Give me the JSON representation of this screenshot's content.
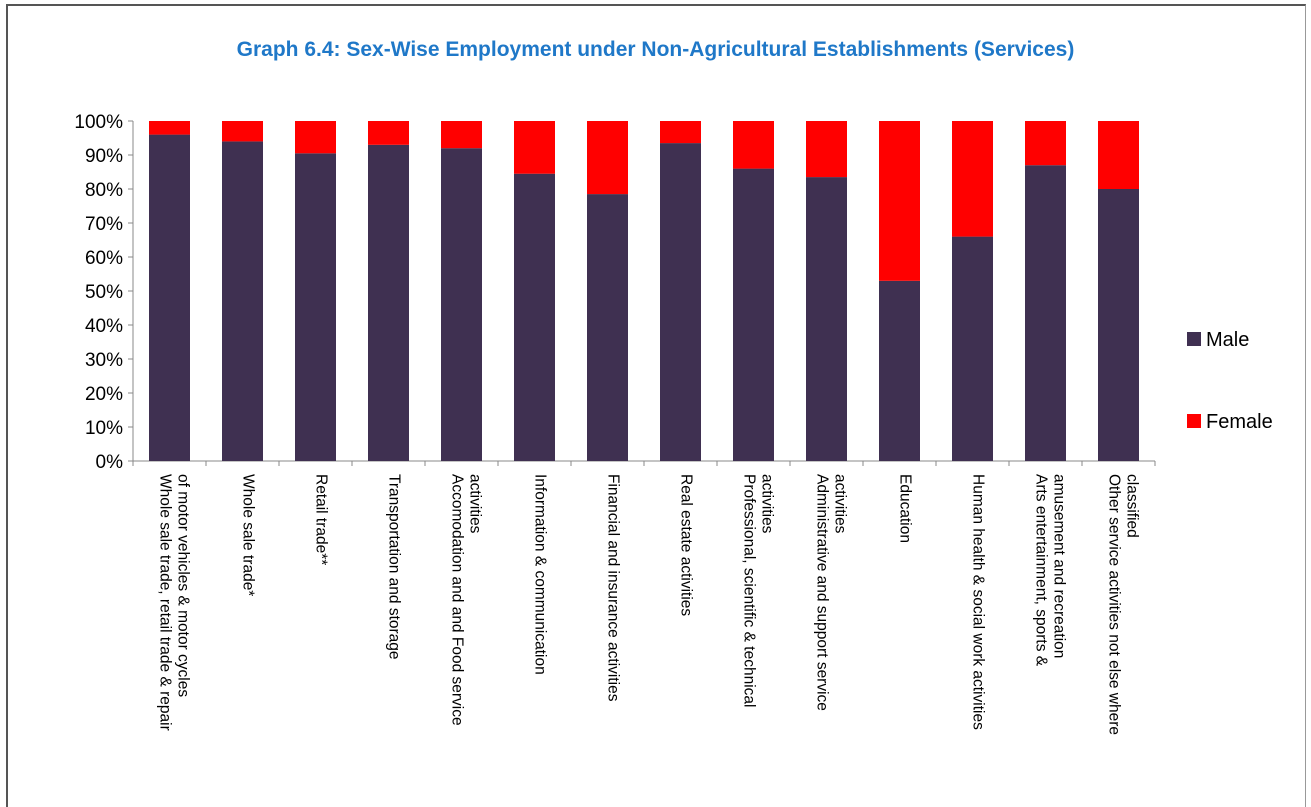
{
  "chart_data": {
    "type": "bar",
    "stacked": true,
    "percent_stacked": true,
    "title": "Graph 6.4: Sex-Wise Employment under Non-Agricultural Establishments (Services)",
    "categories": [
      [
        "Whole sale trade, retail trade & repair",
        "of motor vehicles & motor cycles"
      ],
      [
        "Whole sale trade*"
      ],
      [
        "Retail trade**"
      ],
      [
        "Transportation and storage"
      ],
      [
        "Accomodation and and Food service",
        "activities"
      ],
      [
        "Information & communication"
      ],
      [
        "Financial and insurance activities"
      ],
      [
        "Real estate activities"
      ],
      [
        "Professional, scientific & technical",
        "activities"
      ],
      [
        "Administrative and support service",
        "activities"
      ],
      [
        "Education"
      ],
      [
        "Human health & social work activities"
      ],
      [
        "Arts entertainment, sports &",
        "amusement and recreation"
      ],
      [
        "Other service activities not else where",
        "classified"
      ]
    ],
    "series": [
      {
        "name": "Male",
        "color": "#3f3051",
        "values": [
          96,
          94,
          90.5,
          93,
          92,
          84.5,
          78.5,
          93.5,
          86,
          83.5,
          53,
          66,
          87,
          80
        ]
      },
      {
        "name": "Female",
        "color": "#ff0000",
        "values": [
          4,
          6,
          9.5,
          7,
          8,
          15.5,
          21.5,
          6.5,
          14,
          16.5,
          47,
          34,
          13,
          20
        ]
      }
    ],
    "ylim": [
      0,
      100
    ],
    "yticks": [
      "0%",
      "10%",
      "20%",
      "30%",
      "40%",
      "50%",
      "60%",
      "70%",
      "80%",
      "90%",
      "100%"
    ],
    "grid": false,
    "legend": "right"
  }
}
